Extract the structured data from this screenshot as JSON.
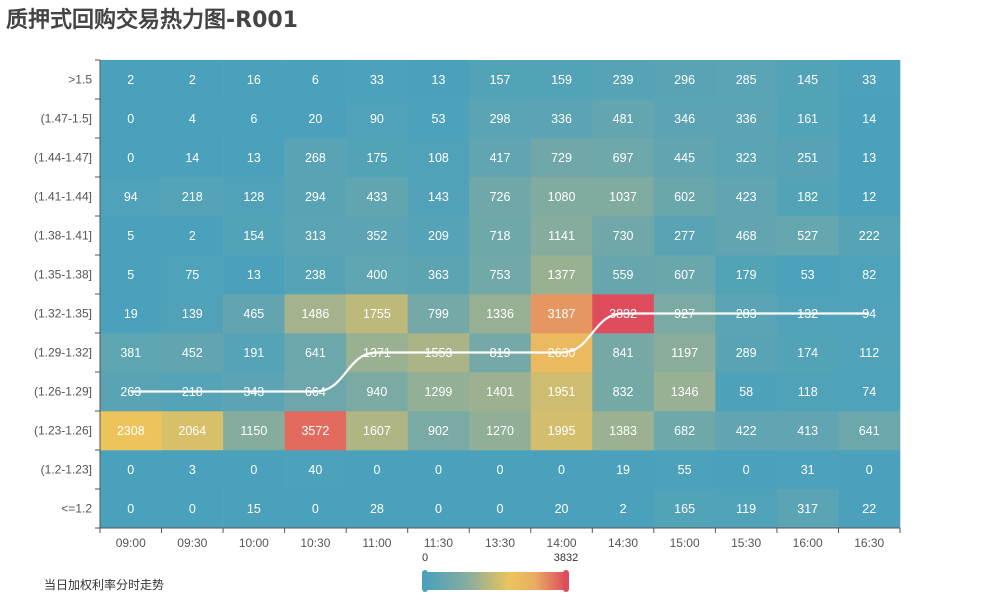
{
  "title": "质押式回购交易热力图-R001",
  "trend_label": "当日加权利率分时走势",
  "colors": {
    "scale": [
      "#4aa1bc",
      "#86ac9e",
      "#edc45c",
      "#e8ad62",
      "#df4c5c"
    ],
    "axis": "#555555",
    "trend_line": "#ffffff"
  },
  "chart_data": {
    "type": "heatmap",
    "title": "质押式回购交易热力图-R001",
    "x": [
      "09:00",
      "09:30",
      "10:00",
      "10:30",
      "11:00",
      "11:30",
      "13:30",
      "14:00",
      "14:30",
      "15:00",
      "15:30",
      "16:00",
      "16:30"
    ],
    "y": [
      "<=1.2",
      "(1.2-1.23]",
      "(1.23-1.26]",
      "(1.26-1.29]",
      "(1.29-1.32]",
      "(1.32-1.35]",
      "(1.35-1.38]",
      "(1.38-1.41]",
      "(1.41-1.44]",
      "(1.44-1.47]",
      "(1.47-1.5]",
      ">1.5"
    ],
    "values": [
      [
        0,
        0,
        15,
        0,
        28,
        0,
        0,
        20,
        2,
        165,
        119,
        317,
        22
      ],
      [
        0,
        3,
        0,
        40,
        0,
        0,
        0,
        0,
        19,
        55,
        0,
        31,
        0
      ],
      [
        2308,
        2064,
        1150,
        3572,
        1607,
        902,
        1270,
        1995,
        1383,
        682,
        422,
        413,
        641
      ],
      [
        263,
        218,
        343,
        664,
        940,
        1299,
        1401,
        1951,
        832,
        1346,
        58,
        118,
        74
      ],
      [
        381,
        452,
        191,
        641,
        1371,
        1553,
        819,
        2630,
        841,
        1197,
        289,
        174,
        112
      ],
      [
        19,
        139,
        465,
        1486,
        1755,
        799,
        1336,
        3187,
        3832,
        927,
        283,
        132,
        94
      ],
      [
        5,
        75,
        13,
        238,
        400,
        363,
        753,
        1377,
        559,
        607,
        179,
        53,
        82
      ],
      [
        5,
        2,
        154,
        313,
        352,
        209,
        718,
        1141,
        730,
        277,
        468,
        527,
        222
      ],
      [
        94,
        218,
        128,
        294,
        433,
        143,
        726,
        1080,
        1037,
        602,
        423,
        182,
        12
      ],
      [
        0,
        14,
        13,
        268,
        175,
        108,
        417,
        729,
        697,
        445,
        323,
        251,
        13
      ],
      [
        0,
        4,
        6,
        20,
        90,
        53,
        298,
        336,
        481,
        346,
        336,
        161,
        14
      ],
      [
        2,
        2,
        16,
        6,
        33,
        13,
        157,
        159,
        239,
        296,
        285,
        145,
        33
      ]
    ],
    "visual_map": {
      "min": 0,
      "max": 3832,
      "min_label": "0",
      "max_label": "3832"
    },
    "series": [
      {
        "type": "line",
        "smooth": true,
        "y_index": [
          3,
          3,
          3,
          3,
          4,
          4,
          4,
          4,
          5,
          5,
          5,
          5,
          5
        ]
      }
    ]
  }
}
